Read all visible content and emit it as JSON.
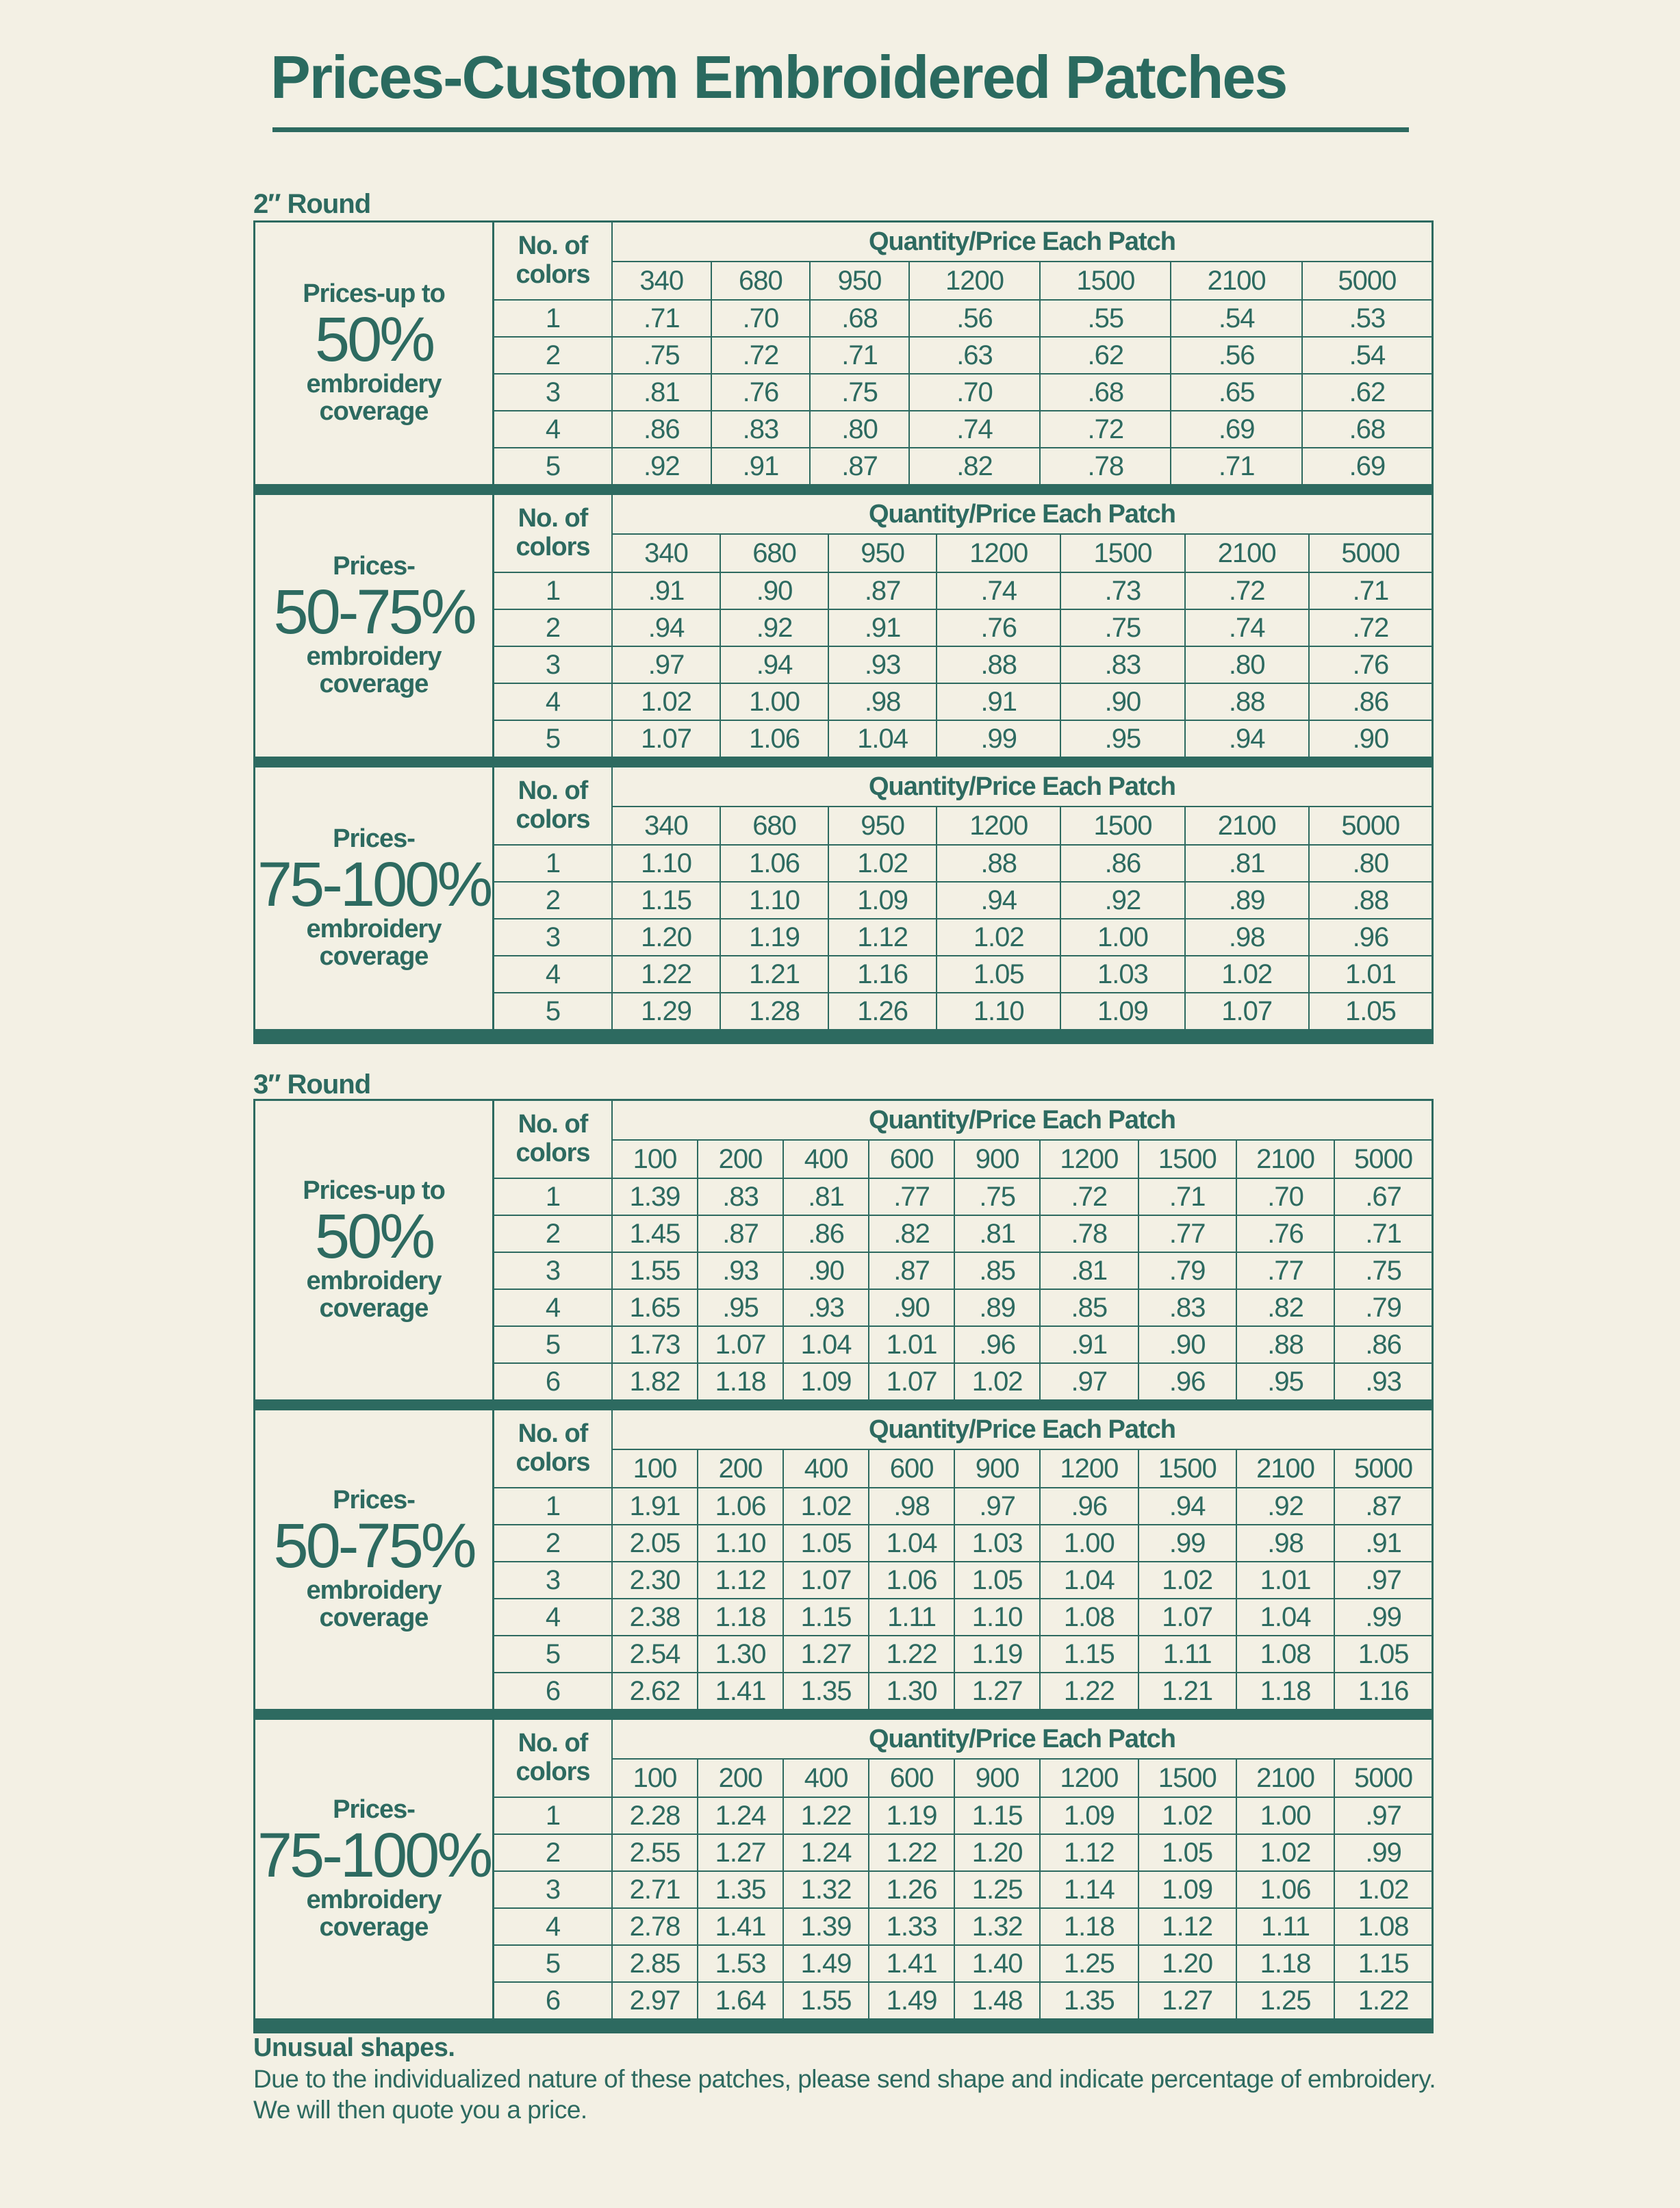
{
  "title": "Prices-Custom Embroidered Patches",
  "header": {
    "no_of": "No. of",
    "colors": "colors",
    "quantity_price": "Quantity/Price Each Patch"
  },
  "sizes": [
    {
      "label": "2″ Round",
      "quantities": [
        "340",
        "680",
        "950",
        "1200",
        "1500",
        "2100",
        "5000"
      ],
      "sections": [
        {
          "line1": "Prices-up to",
          "percent": "50%",
          "line3": "embroidery",
          "line4": "coverage",
          "rows": [
            {
              "colors": "1",
              "prices": [
                ".71",
                ".70",
                ".68",
                ".56",
                ".55",
                ".54",
                ".53"
              ]
            },
            {
              "colors": "2",
              "prices": [
                ".75",
                ".72",
                ".71",
                ".63",
                ".62",
                ".56",
                ".54"
              ]
            },
            {
              "colors": "3",
              "prices": [
                ".81",
                ".76",
                ".75",
                ".70",
                ".68",
                ".65",
                ".62"
              ]
            },
            {
              "colors": "4",
              "prices": [
                ".86",
                ".83",
                ".80",
                ".74",
                ".72",
                ".69",
                ".68"
              ]
            },
            {
              "colors": "5",
              "prices": [
                ".92",
                ".91",
                ".87",
                ".82",
                ".78",
                ".71",
                ".69"
              ]
            }
          ]
        },
        {
          "line1": "Prices-",
          "percent": "50-75%",
          "line3": "embroidery",
          "line4": "coverage",
          "rows": [
            {
              "colors": "1",
              "prices": [
                ".91",
                ".90",
                ".87",
                ".74",
                ".73",
                ".72",
                ".71"
              ]
            },
            {
              "colors": "2",
              "prices": [
                ".94",
                ".92",
                ".91",
                ".76",
                ".75",
                ".74",
                ".72"
              ]
            },
            {
              "colors": "3",
              "prices": [
                ".97",
                ".94",
                ".93",
                ".88",
                ".83",
                ".80",
                ".76"
              ]
            },
            {
              "colors": "4",
              "prices": [
                "1.02",
                "1.00",
                ".98",
                ".91",
                ".90",
                ".88",
                ".86"
              ]
            },
            {
              "colors": "5",
              "prices": [
                "1.07",
                "1.06",
                "1.04",
                ".99",
                ".95",
                ".94",
                ".90"
              ]
            }
          ]
        },
        {
          "line1": "Prices-",
          "percent": "75-100%",
          "line3": "embroidery",
          "line4": "coverage",
          "rows": [
            {
              "colors": "1",
              "prices": [
                "1.10",
                "1.06",
                "1.02",
                ".88",
                ".86",
                ".81",
                ".80"
              ]
            },
            {
              "colors": "2",
              "prices": [
                "1.15",
                "1.10",
                "1.09",
                ".94",
                ".92",
                ".89",
                ".88"
              ]
            },
            {
              "colors": "3",
              "prices": [
                "1.20",
                "1.19",
                "1.12",
                "1.02",
                "1.00",
                ".98",
                ".96"
              ]
            },
            {
              "colors": "4",
              "prices": [
                "1.22",
                "1.21",
                "1.16",
                "1.05",
                "1.03",
                "1.02",
                "1.01"
              ]
            },
            {
              "colors": "5",
              "prices": [
                "1.29",
                "1.28",
                "1.26",
                "1.10",
                "1.09",
                "1.07",
                "1.05"
              ]
            }
          ]
        }
      ]
    },
    {
      "label": "3″ Round",
      "quantities": [
        "100",
        "200",
        "400",
        "600",
        "900",
        "1200",
        "1500",
        "2100",
        "5000"
      ],
      "sections": [
        {
          "line1": "Prices-up to",
          "percent": "50%",
          "line3": "embroidery",
          "line4": "coverage",
          "rows": [
            {
              "colors": "1",
              "prices": [
                "1.39",
                ".83",
                ".81",
                ".77",
                ".75",
                ".72",
                ".71",
                ".70",
                ".67"
              ]
            },
            {
              "colors": "2",
              "prices": [
                "1.45",
                ".87",
                ".86",
                ".82",
                ".81",
                ".78",
                ".77",
                ".76",
                ".71"
              ]
            },
            {
              "colors": "3",
              "prices": [
                "1.55",
                ".93",
                ".90",
                ".87",
                ".85",
                ".81",
                ".79",
                ".77",
                ".75"
              ]
            },
            {
              "colors": "4",
              "prices": [
                "1.65",
                ".95",
                ".93",
                ".90",
                ".89",
                ".85",
                ".83",
                ".82",
                ".79"
              ]
            },
            {
              "colors": "5",
              "prices": [
                "1.73",
                "1.07",
                "1.04",
                "1.01",
                ".96",
                ".91",
                ".90",
                ".88",
                ".86"
              ]
            },
            {
              "colors": "6",
              "prices": [
                "1.82",
                "1.18",
                "1.09",
                "1.07",
                "1.02",
                ".97",
                ".96",
                ".95",
                ".93"
              ]
            }
          ]
        },
        {
          "line1": "Prices-",
          "percent": "50-75%",
          "line3": "embroidery",
          "line4": "coverage",
          "rows": [
            {
              "colors": "1",
              "prices": [
                "1.91",
                "1.06",
                "1.02",
                ".98",
                ".97",
                ".96",
                ".94",
                ".92",
                ".87"
              ]
            },
            {
              "colors": "2",
              "prices": [
                "2.05",
                "1.10",
                "1.05",
                "1.04",
                "1.03",
                "1.00",
                ".99",
                ".98",
                ".91"
              ]
            },
            {
              "colors": "3",
              "prices": [
                "2.30",
                "1.12",
                "1.07",
                "1.06",
                "1.05",
                "1.04",
                "1.02",
                "1.01",
                ".97"
              ]
            },
            {
              "colors": "4",
              "prices": [
                "2.38",
                "1.18",
                "1.15",
                "1.11",
                "1.10",
                "1.08",
                "1.07",
                "1.04",
                ".99"
              ]
            },
            {
              "colors": "5",
              "prices": [
                "2.54",
                "1.30",
                "1.27",
                "1.22",
                "1.19",
                "1.15",
                "1.11",
                "1.08",
                "1.05"
              ]
            },
            {
              "colors": "6",
              "prices": [
                "2.62",
                "1.41",
                "1.35",
                "1.30",
                "1.27",
                "1.22",
                "1.21",
                "1.18",
                "1.16"
              ]
            }
          ]
        },
        {
          "line1": "Prices-",
          "percent": "75-100%",
          "line3": "embroidery",
          "line4": "coverage",
          "rows": [
            {
              "colors": "1",
              "prices": [
                "2.28",
                "1.24",
                "1.22",
                "1.19",
                "1.15",
                "1.09",
                "1.02",
                "1.00",
                ".97"
              ]
            },
            {
              "colors": "2",
              "prices": [
                "2.55",
                "1.27",
                "1.24",
                "1.22",
                "1.20",
                "1.12",
                "1.05",
                "1.02",
                ".99"
              ]
            },
            {
              "colors": "3",
              "prices": [
                "2.71",
                "1.35",
                "1.32",
                "1.26",
                "1.25",
                "1.14",
                "1.09",
                "1.06",
                "1.02"
              ]
            },
            {
              "colors": "4",
              "prices": [
                "2.78",
                "1.41",
                "1.39",
                "1.33",
                "1.32",
                "1.18",
                "1.12",
                "1.11",
                "1.08"
              ]
            },
            {
              "colors": "5",
              "prices": [
                "2.85",
                "1.53",
                "1.49",
                "1.41",
                "1.40",
                "1.25",
                "1.20",
                "1.18",
                "1.15"
              ]
            },
            {
              "colors": "6",
              "prices": [
                "2.97",
                "1.64",
                "1.55",
                "1.49",
                "1.48",
                "1.35",
                "1.27",
                "1.25",
                "1.22"
              ]
            }
          ]
        }
      ]
    }
  ],
  "footer": {
    "heading": "Unusual shapes.",
    "text": "Due to the individualized nature of these patches, please send shape and indicate percentage of embroidery. We will then quote you a price."
  },
  "colors": {
    "ink": "#2d6a60",
    "paper": "#f3f0e4"
  }
}
